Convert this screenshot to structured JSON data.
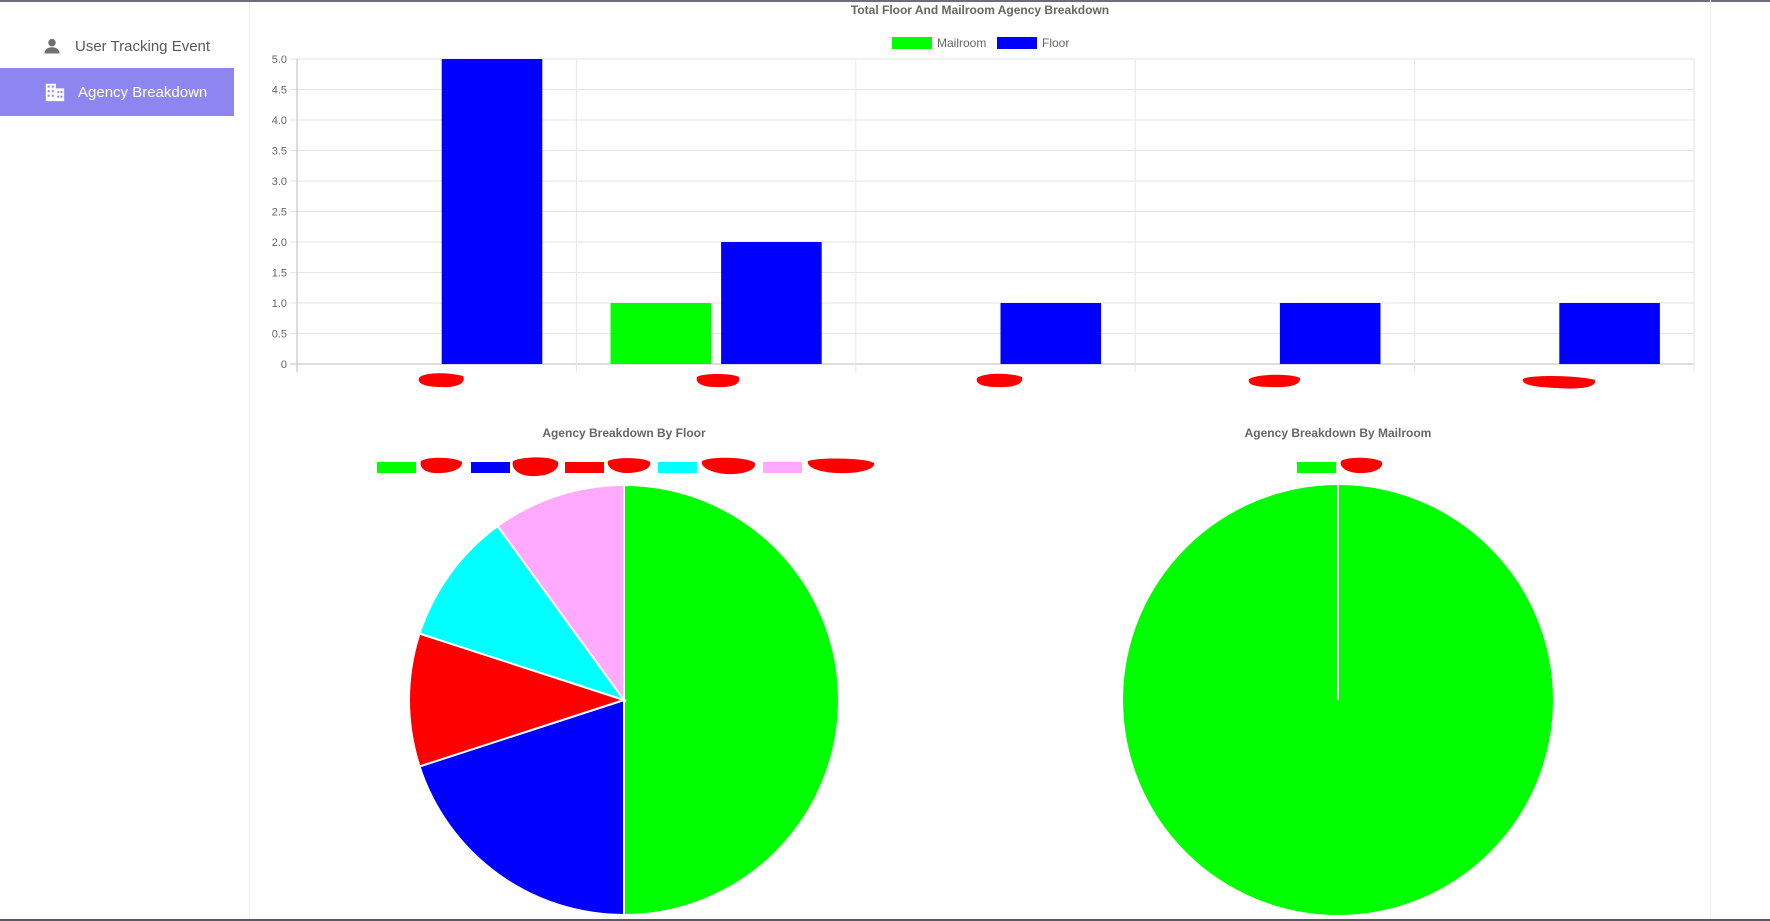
{
  "sidebar": {
    "items": [
      {
        "label": "User Tracking Event",
        "icon": "person-icon",
        "active": false
      },
      {
        "label": "Agency Breakdown",
        "icon": "building-icon",
        "active": true
      }
    ]
  },
  "colors": {
    "mailroom": "#00ff00",
    "floor": "#0000ff",
    "red": "#ff0000",
    "cyan": "#00ffff",
    "pink": "#ffaaff",
    "active_nav": "#8e86f0"
  },
  "charts": {
    "bar": {
      "title": "Total Floor And Mailroom Agency Breakdown",
      "legend": [
        "Mailroom",
        "Floor"
      ]
    },
    "floor_pie": {
      "title": "Agency Breakdown By Floor"
    },
    "mailroom_pie": {
      "title": "Agency Breakdown By Mailroom"
    }
  },
  "chart_data": [
    {
      "type": "bar",
      "title": "Total Floor And Mailroom Agency Breakdown",
      "categories": [
        "",
        "",
        "",
        "",
        ""
      ],
      "categories_note": "category labels are redacted in the screenshot",
      "series": [
        {
          "name": "Mailroom",
          "color": "#00ff00",
          "values": [
            0,
            1,
            0,
            0,
            0
          ]
        },
        {
          "name": "Floor",
          "color": "#0000ff",
          "values": [
            5,
            2,
            1,
            1,
            1
          ]
        }
      ],
      "ylim": [
        0,
        5
      ],
      "yticks": [
        "0",
        "0.5",
        "1.0",
        "1.5",
        "2.0",
        "2.5",
        "3.0",
        "3.5",
        "4.0",
        "4.5",
        "5.0"
      ],
      "legend_position": "top",
      "grid": true
    },
    {
      "type": "pie",
      "title": "Agency Breakdown By Floor",
      "labels": [
        "",
        "",
        "",
        "",
        ""
      ],
      "values": [
        5,
        2,
        1,
        1,
        1
      ],
      "colors": [
        "#00ff00",
        "#0000ff",
        "#ff0000",
        "#00ffff",
        "#ffaaff"
      ],
      "legend_position": "top"
    },
    {
      "type": "pie",
      "title": "Agency Breakdown By Mailroom",
      "labels": [
        ""
      ],
      "values": [
        1
      ],
      "colors": [
        "#00ff00"
      ],
      "legend_position": "top"
    }
  ]
}
